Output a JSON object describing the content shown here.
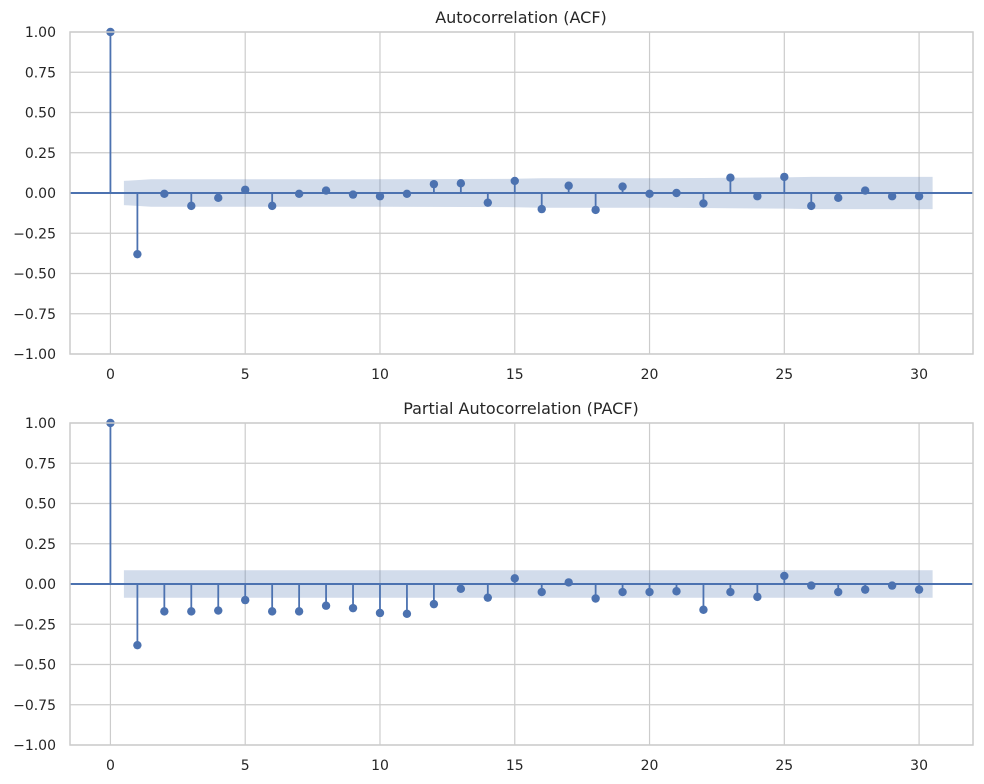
{
  "colors": {
    "series": "#4c72b0",
    "band": "#4c72b0",
    "grid": "#cccccc",
    "background": "#ffffff"
  },
  "chart_data": [
    {
      "type": "stem",
      "title": "Autocorrelation (ACF)",
      "xlim": [
        -1.5,
        32
      ],
      "ylim": [
        -1,
        1
      ],
      "xticks": [
        0,
        5,
        10,
        15,
        20,
        25,
        30
      ],
      "yticks": [
        1.0,
        0.75,
        0.5,
        0.25,
        0.0,
        -0.25,
        -0.5,
        -0.75,
        -1.0
      ],
      "ytick_labels": [
        "1.00",
        "0.75",
        "0.50",
        "0.25",
        "0.00",
        "−0.25",
        "−0.50",
        "−0.75",
        "−1.00"
      ],
      "grid": true,
      "lags": [
        0,
        1,
        2,
        3,
        4,
        5,
        6,
        7,
        8,
        9,
        10,
        11,
        12,
        13,
        14,
        15,
        16,
        17,
        18,
        19,
        20,
        21,
        22,
        23,
        24,
        25,
        26,
        27,
        28,
        29,
        30
      ],
      "values": [
        1.0,
        -0.38,
        -0.005,
        -0.08,
        -0.03,
        0.02,
        -0.08,
        -0.005,
        0.015,
        -0.01,
        -0.02,
        -0.005,
        0.055,
        0.06,
        -0.06,
        0.075,
        -0.1,
        0.045,
        -0.105,
        0.04,
        -0.005,
        0.0,
        -0.065,
        0.095,
        -0.02,
        0.1,
        -0.08,
        -0.03,
        0.015,
        -0.02,
        -0.02
      ],
      "confidence_band": {
        "lags": [
          0.5,
          1.5,
          2,
          5,
          10,
          15,
          16,
          20,
          22,
          23,
          25,
          26,
          30,
          30.5
        ],
        "upper": [
          0.075,
          0.085,
          0.085,
          0.085,
          0.086,
          0.088,
          0.092,
          0.092,
          0.093,
          0.095,
          0.097,
          0.1,
          0.1,
          0.1
        ]
      }
    },
    {
      "type": "stem",
      "title": "Partial Autocorrelation (PACF)",
      "xlim": [
        -1.5,
        32
      ],
      "ylim": [
        -1,
        1
      ],
      "xticks": [
        0,
        5,
        10,
        15,
        20,
        25,
        30
      ],
      "yticks": [
        1.0,
        0.75,
        0.5,
        0.25,
        0.0,
        -0.25,
        -0.5,
        -0.75,
        -1.0
      ],
      "ytick_labels": [
        "1.00",
        "0.75",
        "0.50",
        "0.25",
        "0.00",
        "−0.25",
        "−0.50",
        "−0.75",
        "−1.00"
      ],
      "grid": true,
      "lags": [
        0,
        1,
        2,
        3,
        4,
        5,
        6,
        7,
        8,
        9,
        10,
        11,
        12,
        13,
        14,
        15,
        16,
        17,
        18,
        19,
        20,
        21,
        22,
        23,
        24,
        25,
        26,
        27,
        28,
        29,
        30
      ],
      "values": [
        1.0,
        -0.38,
        -0.17,
        -0.17,
        -0.165,
        -0.1,
        -0.17,
        -0.17,
        -0.135,
        -0.15,
        -0.18,
        -0.185,
        -0.125,
        -0.03,
        -0.085,
        0.035,
        -0.05,
        0.01,
        -0.09,
        -0.05,
        -0.05,
        -0.045,
        -0.16,
        -0.05,
        -0.08,
        0.05,
        -0.01,
        -0.05,
        -0.035,
        -0.01,
        -0.035
      ],
      "confidence_band": {
        "lags": [
          0.5,
          30.5
        ],
        "upper": [
          0.085,
          0.085
        ]
      }
    }
  ]
}
